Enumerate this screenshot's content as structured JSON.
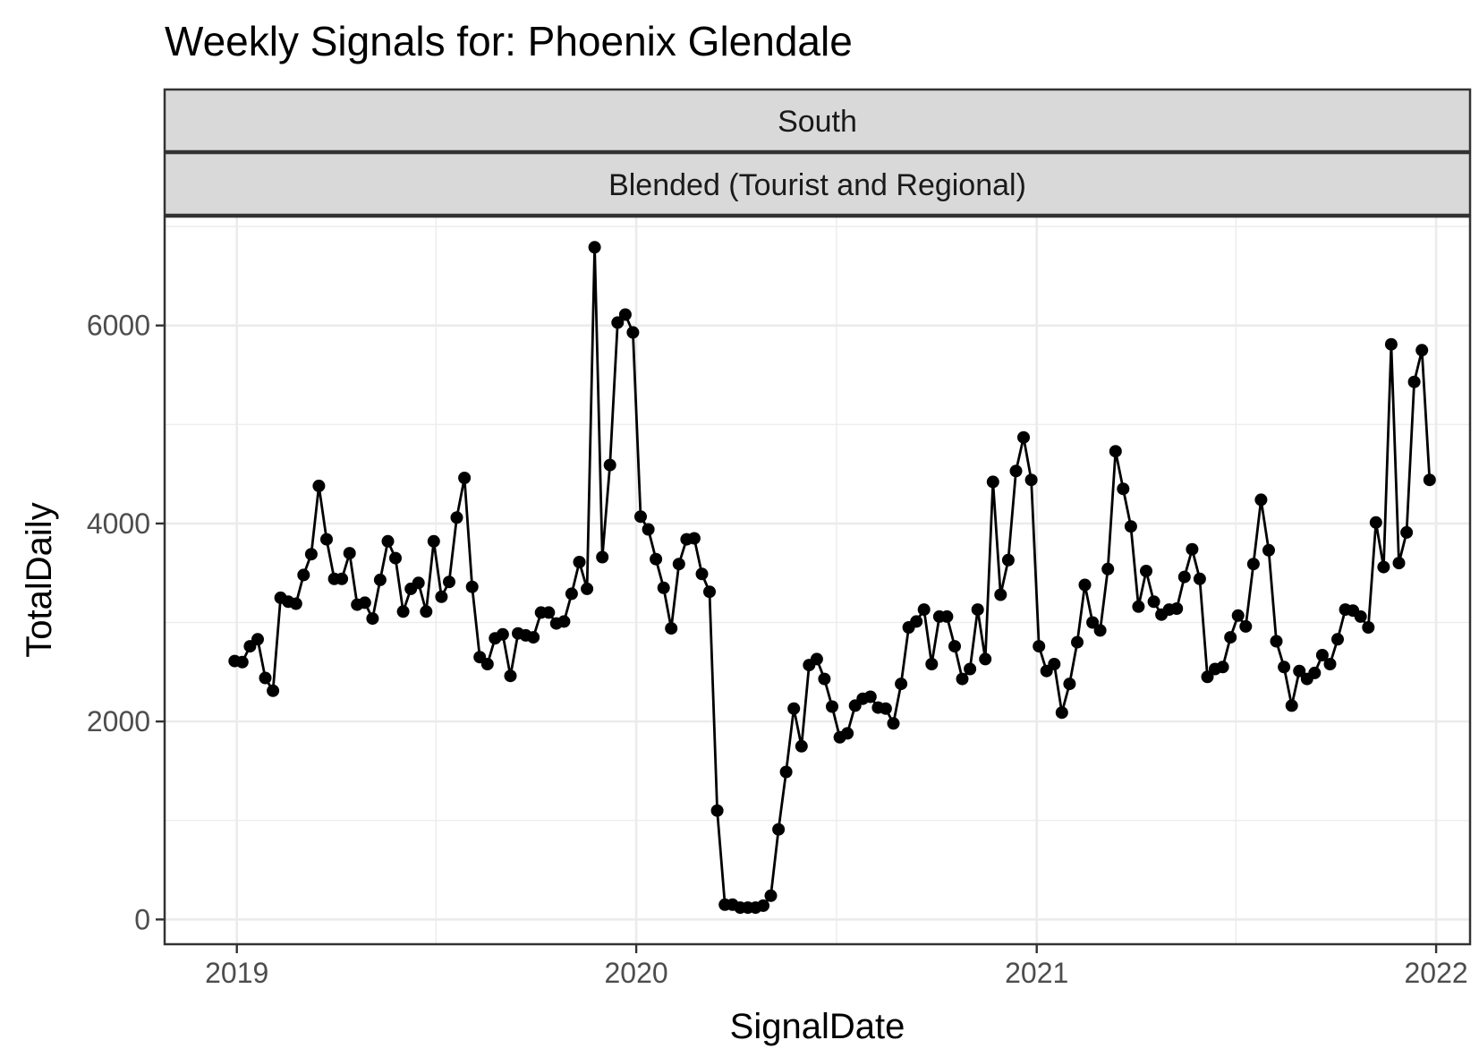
{
  "chart_data": {
    "type": "line",
    "title": "Weekly Signals for: Phoenix Glendale",
    "facet_strips": [
      "South",
      "Blended (Tourist and Regional)"
    ],
    "xlabel": "SignalDate",
    "ylabel": "TotalDaily",
    "x_ticks": [
      "2019",
      "2020",
      "2021",
      "2022"
    ],
    "y_ticks": [
      "0",
      "2000",
      "4000",
      "6000"
    ],
    "xlim": [
      "2018-10-27",
      "2022-02-01"
    ],
    "ylim": [
      -250,
      7100
    ],
    "grid": true,
    "marker": "circle",
    "line_color": "#000000",
    "series": [
      {
        "x": [
          "2018-12-30",
          "2019-01-06",
          "2019-01-13",
          "2019-01-20",
          "2019-01-27",
          "2019-02-03",
          "2019-02-10",
          "2019-02-17",
          "2019-02-24",
          "2019-03-03",
          "2019-03-10",
          "2019-03-17",
          "2019-03-24",
          "2019-03-31",
          "2019-04-07",
          "2019-04-14",
          "2019-04-21",
          "2019-04-28",
          "2019-05-05",
          "2019-05-12",
          "2019-05-19",
          "2019-05-26",
          "2019-06-02",
          "2019-06-09",
          "2019-06-16",
          "2019-06-23",
          "2019-06-30",
          "2019-07-07",
          "2019-07-14",
          "2019-07-21",
          "2019-07-28",
          "2019-08-04",
          "2019-08-11",
          "2019-08-18",
          "2019-08-25",
          "2019-09-01",
          "2019-09-08",
          "2019-09-15",
          "2019-09-22",
          "2019-09-29",
          "2019-10-06",
          "2019-10-13",
          "2019-10-20",
          "2019-10-27",
          "2019-11-03",
          "2019-11-10",
          "2019-11-17",
          "2019-11-24",
          "2019-12-01",
          "2019-12-08",
          "2019-12-15",
          "2019-12-22",
          "2019-12-29",
          "2020-01-05",
          "2020-01-12",
          "2020-01-19",
          "2020-01-26",
          "2020-02-02",
          "2020-02-09",
          "2020-02-16",
          "2020-02-23",
          "2020-03-01",
          "2020-03-08",
          "2020-03-15",
          "2020-03-22",
          "2020-03-29",
          "2020-04-05",
          "2020-04-12",
          "2020-04-19",
          "2020-04-26",
          "2020-05-03",
          "2020-05-10",
          "2020-05-17",
          "2020-05-24",
          "2020-05-31",
          "2020-06-07",
          "2020-06-14",
          "2020-06-21",
          "2020-06-28",
          "2020-07-05",
          "2020-07-12",
          "2020-07-19",
          "2020-07-26",
          "2020-08-02",
          "2020-08-09",
          "2020-08-16",
          "2020-08-23",
          "2020-08-30",
          "2020-09-06",
          "2020-09-13",
          "2020-09-20",
          "2020-09-27",
          "2020-10-04",
          "2020-10-11",
          "2020-10-18",
          "2020-10-25",
          "2020-11-01",
          "2020-11-08",
          "2020-11-15",
          "2020-11-22",
          "2020-11-29",
          "2020-12-06",
          "2020-12-13",
          "2020-12-20",
          "2020-12-27",
          "2021-01-03",
          "2021-01-10",
          "2021-01-17",
          "2021-01-24",
          "2021-01-31",
          "2021-02-07",
          "2021-02-14",
          "2021-02-21",
          "2021-02-28",
          "2021-03-07",
          "2021-03-14",
          "2021-03-21",
          "2021-03-28",
          "2021-04-04",
          "2021-04-11",
          "2021-04-18",
          "2021-04-25",
          "2021-05-02",
          "2021-05-09",
          "2021-05-16",
          "2021-05-23",
          "2021-05-30",
          "2021-06-06",
          "2021-06-13",
          "2021-06-20",
          "2021-06-27",
          "2021-07-04",
          "2021-07-11",
          "2021-07-18",
          "2021-07-25",
          "2021-08-01",
          "2021-08-08",
          "2021-08-15",
          "2021-08-22",
          "2021-08-29",
          "2021-09-05",
          "2021-09-12",
          "2021-09-19",
          "2021-09-26",
          "2021-10-03",
          "2021-10-10",
          "2021-10-17",
          "2021-10-24",
          "2021-10-31",
          "2021-11-07",
          "2021-11-14",
          "2021-11-21",
          "2021-11-28",
          "2021-12-05",
          "2021-12-12",
          "2021-12-19",
          "2021-12-26"
        ],
        "y": [
          2610,
          2600,
          2760,
          2830,
          2440,
          2310,
          3250,
          3210,
          3190,
          3480,
          3690,
          4380,
          3840,
          3440,
          3440,
          3700,
          3180,
          3200,
          3040,
          3430,
          3820,
          3650,
          3110,
          3340,
          3400,
          3110,
          3820,
          3260,
          3410,
          4060,
          4460,
          3360,
          2650,
          2580,
          2840,
          2880,
          2460,
          2890,
          2870,
          2850,
          3100,
          3100,
          2990,
          3010,
          3290,
          3610,
          3340,
          6790,
          3660,
          4590,
          6030,
          6110,
          5930,
          4070,
          3940,
          3640,
          3350,
          2940,
          3590,
          3840,
          3850,
          3490,
          3310,
          1100,
          150,
          150,
          120,
          120,
          120,
          140,
          240,
          910,
          1490,
          2130,
          1750,
          2570,
          2630,
          2430,
          2150,
          1840,
          1880,
          2160,
          2230,
          2250,
          2140,
          2130,
          1980,
          2380,
          2950,
          3010,
          3130,
          2580,
          3060,
          3060,
          2760,
          2430,
          2530,
          3130,
          2630,
          4420,
          3280,
          3630,
          4530,
          4870,
          4440,
          2760,
          2510,
          2580,
          2090,
          2380,
          2800,
          3380,
          3000,
          2920,
          3540,
          4730,
          4350,
          3970,
          3160,
          3520,
          3210,
          3080,
          3130,
          3140,
          3460,
          3740,
          3440,
          2450,
          2530,
          2550,
          2850,
          3070,
          2960,
          3590,
          4240,
          3730,
          2810,
          2550,
          2160,
          2510,
          2430,
          2490,
          2670,
          2580,
          2830,
          3130,
          3120,
          3060,
          2950,
          4010,
          3560,
          5810,
          3600,
          3910,
          5430,
          5750,
          4440
        ]
      }
    ]
  }
}
